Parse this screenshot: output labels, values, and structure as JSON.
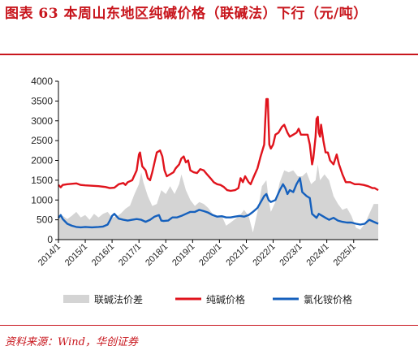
{
  "title": "图表 63   本周山东地区纯碱价格（联碱法）下行（元/吨）",
  "source": "资料来源：Wind，华创证券",
  "chart_data": {
    "type": "area+line",
    "title": "",
    "xlabel": "",
    "ylabel": "",
    "ylim": [
      0,
      4000
    ],
    "yticks": [
      0,
      500,
      1000,
      1500,
      2000,
      2500,
      3000,
      3500,
      4000
    ],
    "xrange": [
      "2014-01-01",
      "2025-12-01"
    ],
    "xticks": [
      "2014/1",
      "2015/1",
      "2016/1",
      "2017/1",
      "2018/1",
      "2019/1",
      "2020/1",
      "2021/1",
      "2022/1",
      "2023/1",
      "2024/1",
      "2025/1"
    ],
    "grid": false,
    "legend_position": "bottom",
    "series": [
      {
        "name": "联碱法价差",
        "kind": "area",
        "color": "#d4d4d4",
        "points": [
          [
            "2014-01-01",
            560
          ],
          [
            "2014-03-01",
            600
          ],
          [
            "2014-05-01",
            520
          ],
          [
            "2014-07-01",
            600
          ],
          [
            "2014-09-01",
            700
          ],
          [
            "2014-11-01",
            560
          ],
          [
            "2015-01-01",
            620
          ],
          [
            "2015-03-01",
            500
          ],
          [
            "2015-05-01",
            650
          ],
          [
            "2015-07-01",
            560
          ],
          [
            "2015-09-01",
            650
          ],
          [
            "2015-11-01",
            700
          ],
          [
            "2016-01-01",
            560
          ],
          [
            "2016-03-01",
            580
          ],
          [
            "2016-05-01",
            660
          ],
          [
            "2016-07-01",
            780
          ],
          [
            "2016-09-01",
            860
          ],
          [
            "2016-11-01",
            1150
          ],
          [
            "2017-01-01",
            1400
          ],
          [
            "2017-02-01",
            1700
          ],
          [
            "2017-03-01",
            1450
          ],
          [
            "2017-05-01",
            1100
          ],
          [
            "2017-07-01",
            850
          ],
          [
            "2017-09-01",
            900
          ],
          [
            "2017-11-01",
            1250
          ],
          [
            "2018-01-01",
            1150
          ],
          [
            "2018-03-01",
            1350
          ],
          [
            "2018-05-01",
            1150
          ],
          [
            "2018-07-01",
            1400
          ],
          [
            "2018-08-01",
            1650
          ],
          [
            "2018-10-01",
            1250
          ],
          [
            "2018-12-01",
            1000
          ],
          [
            "2019-02-01",
            850
          ],
          [
            "2019-04-01",
            950
          ],
          [
            "2019-06-01",
            900
          ],
          [
            "2019-08-01",
            800
          ],
          [
            "2019-10-01",
            650
          ],
          [
            "2019-12-01",
            600
          ],
          [
            "2020-02-01",
            600
          ],
          [
            "2020-04-01",
            350
          ],
          [
            "2020-06-01",
            430
          ],
          [
            "2020-08-01",
            520
          ],
          [
            "2020-10-01",
            600
          ],
          [
            "2020-12-01",
            750
          ],
          [
            "2021-02-01",
            600
          ],
          [
            "2021-04-01",
            180
          ],
          [
            "2021-06-01",
            700
          ],
          [
            "2021-08-01",
            1350
          ],
          [
            "2021-10-01",
            1500
          ],
          [
            "2021-11-01",
            1000
          ],
          [
            "2021-12-01",
            700
          ],
          [
            "2022-02-01",
            950
          ],
          [
            "2022-04-01",
            1450
          ],
          [
            "2022-06-01",
            1750
          ],
          [
            "2022-08-01",
            1700
          ],
          [
            "2022-10-01",
            1750
          ],
          [
            "2022-12-01",
            1600
          ],
          [
            "2023-02-01",
            1600
          ],
          [
            "2023-04-01",
            1700
          ],
          [
            "2023-06-01",
            1400
          ],
          [
            "2023-08-01",
            1500
          ],
          [
            "2023-09-01",
            1900
          ],
          [
            "2023-10-01",
            1500
          ],
          [
            "2023-12-01",
            1650
          ],
          [
            "2024-02-01",
            1500
          ],
          [
            "2024-04-01",
            1100
          ],
          [
            "2024-06-01",
            900
          ],
          [
            "2024-08-01",
            750
          ],
          [
            "2024-10-01",
            800
          ],
          [
            "2024-12-01",
            600
          ],
          [
            "2025-02-01",
            300
          ],
          [
            "2025-04-01",
            250
          ],
          [
            "2025-06-01",
            400
          ],
          [
            "2025-08-01",
            650
          ],
          [
            "2025-10-01",
            900
          ],
          [
            "2025-12-01",
            900
          ]
        ]
      },
      {
        "name": "纯碱价格",
        "kind": "line",
        "color": "#e0131c",
        "points": [
          [
            "2014-01-01",
            1380
          ],
          [
            "2014-02-01",
            1320
          ],
          [
            "2014-03-01",
            1380
          ],
          [
            "2014-05-01",
            1400
          ],
          [
            "2014-07-01",
            1410
          ],
          [
            "2014-09-01",
            1420
          ],
          [
            "2014-11-01",
            1380
          ],
          [
            "2015-01-01",
            1370
          ],
          [
            "2015-04-01",
            1360
          ],
          [
            "2015-07-01",
            1350
          ],
          [
            "2015-10-01",
            1330
          ],
          [
            "2015-12-01",
            1300
          ],
          [
            "2016-02-01",
            1310
          ],
          [
            "2016-04-01",
            1400
          ],
          [
            "2016-06-01",
            1430
          ],
          [
            "2016-07-01",
            1380
          ],
          [
            "2016-08-01",
            1450
          ],
          [
            "2016-10-01",
            1500
          ],
          [
            "2016-12-01",
            1750
          ],
          [
            "2017-01-01",
            2150
          ],
          [
            "2017-01-15",
            2200
          ],
          [
            "2017-02-15",
            1850
          ],
          [
            "2017-04-01",
            1750
          ],
          [
            "2017-05-01",
            1550
          ],
          [
            "2017-06-01",
            1500
          ],
          [
            "2017-07-01",
            1700
          ],
          [
            "2017-08-01",
            1950
          ],
          [
            "2017-09-01",
            2200
          ],
          [
            "2017-10-15",
            2250
          ],
          [
            "2017-11-15",
            2100
          ],
          [
            "2017-12-15",
            1750
          ],
          [
            "2018-01-15",
            1600
          ],
          [
            "2018-03-01",
            1650
          ],
          [
            "2018-04-15",
            1700
          ],
          [
            "2018-05-15",
            1800
          ],
          [
            "2018-07-01",
            1900
          ],
          [
            "2018-08-01",
            2050
          ],
          [
            "2018-09-01",
            2100
          ],
          [
            "2018-10-01",
            1950
          ],
          [
            "2018-11-01",
            2000
          ],
          [
            "2018-12-01",
            1750
          ],
          [
            "2019-01-15",
            1700
          ],
          [
            "2019-03-01",
            1680
          ],
          [
            "2019-04-15",
            1780
          ],
          [
            "2019-06-01",
            1750
          ],
          [
            "2019-07-15",
            1650
          ],
          [
            "2019-09-01",
            1550
          ],
          [
            "2019-10-15",
            1450
          ],
          [
            "2019-12-01",
            1400
          ],
          [
            "2020-01-15",
            1380
          ],
          [
            "2020-03-01",
            1330
          ],
          [
            "2020-04-15",
            1250
          ],
          [
            "2020-06-01",
            1230
          ],
          [
            "2020-08-01",
            1250
          ],
          [
            "2020-09-15",
            1300
          ],
          [
            "2020-10-15",
            1550
          ],
          [
            "2020-11-15",
            1450
          ],
          [
            "2020-12-15",
            1600
          ],
          [
            "2021-02-01",
            1450
          ],
          [
            "2021-03-01",
            1400
          ],
          [
            "2021-04-15",
            1600
          ],
          [
            "2021-06-01",
            1800
          ],
          [
            "2021-07-15",
            2100
          ],
          [
            "2021-09-01",
            2400
          ],
          [
            "2021-09-15",
            3000
          ],
          [
            "2021-10-01",
            3550
          ],
          [
            "2021-10-20",
            3550
          ],
          [
            "2021-11-10",
            2400
          ],
          [
            "2021-12-01",
            2300
          ],
          [
            "2022-01-01",
            2400
          ],
          [
            "2022-02-01",
            2650
          ],
          [
            "2022-03-15",
            2700
          ],
          [
            "2022-05-01",
            2850
          ],
          [
            "2022-06-01",
            2900
          ],
          [
            "2022-07-15",
            2700
          ],
          [
            "2022-08-15",
            2600
          ],
          [
            "2022-10-01",
            2650
          ],
          [
            "2022-11-15",
            2700
          ],
          [
            "2022-12-15",
            2800
          ],
          [
            "2023-01-15",
            2650
          ],
          [
            "2023-03-01",
            2650
          ],
          [
            "2023-04-15",
            2650
          ],
          [
            "2023-05-15",
            2400
          ],
          [
            "2023-06-15",
            1900
          ],
          [
            "2023-07-01",
            2050
          ],
          [
            "2023-08-01",
            2600
          ],
          [
            "2023-08-15",
            3050
          ],
          [
            "2023-09-01",
            3100
          ],
          [
            "2023-09-15",
            2700
          ],
          [
            "2023-10-01",
            2600
          ],
          [
            "2023-10-15",
            2900
          ],
          [
            "2023-11-15",
            2500
          ],
          [
            "2023-12-15",
            2200
          ],
          [
            "2024-01-15",
            2200
          ],
          [
            "2024-02-15",
            2000
          ],
          [
            "2024-04-01",
            1900
          ],
          [
            "2024-05-15",
            2150
          ],
          [
            "2024-06-15",
            1900
          ],
          [
            "2024-08-01",
            1650
          ],
          [
            "2024-09-15",
            1450
          ],
          [
            "2024-11-15",
            1450
          ],
          [
            "2025-01-15",
            1400
          ],
          [
            "2025-03-15",
            1400
          ],
          [
            "2025-05-15",
            1380
          ],
          [
            "2025-07-15",
            1350
          ],
          [
            "2025-09-15",
            1300
          ],
          [
            "2025-10-15",
            1300
          ],
          [
            "2025-12-01",
            1250
          ]
        ]
      },
      {
        "name": "氯化铵价格",
        "kind": "line",
        "color": "#1560bd",
        "points": [
          [
            "2014-01-01",
            550
          ],
          [
            "2014-02-01",
            620
          ],
          [
            "2014-03-01",
            520
          ],
          [
            "2014-05-01",
            400
          ],
          [
            "2014-07-01",
            350
          ],
          [
            "2014-09-01",
            320
          ],
          [
            "2014-11-01",
            310
          ],
          [
            "2015-01-01",
            320
          ],
          [
            "2015-04-01",
            310
          ],
          [
            "2015-07-01",
            320
          ],
          [
            "2015-09-01",
            330
          ],
          [
            "2015-11-01",
            380
          ],
          [
            "2015-12-01",
            480
          ],
          [
            "2016-01-01",
            600
          ],
          [
            "2016-02-01",
            650
          ],
          [
            "2016-04-01",
            530
          ],
          [
            "2016-06-01",
            500
          ],
          [
            "2016-08-01",
            480
          ],
          [
            "2016-10-01",
            500
          ],
          [
            "2016-12-01",
            520
          ],
          [
            "2017-02-01",
            500
          ],
          [
            "2017-04-01",
            450
          ],
          [
            "2017-06-01",
            500
          ],
          [
            "2017-08-01",
            580
          ],
          [
            "2017-10-01",
            620
          ],
          [
            "2017-11-01",
            480
          ],
          [
            "2017-12-01",
            470
          ],
          [
            "2018-02-01",
            480
          ],
          [
            "2018-04-01",
            560
          ],
          [
            "2018-06-01",
            560
          ],
          [
            "2018-08-01",
            600
          ],
          [
            "2018-10-01",
            650
          ],
          [
            "2018-12-01",
            700
          ],
          [
            "2019-02-01",
            700
          ],
          [
            "2019-04-01",
            750
          ],
          [
            "2019-06-01",
            720
          ],
          [
            "2019-08-01",
            680
          ],
          [
            "2019-10-01",
            620
          ],
          [
            "2019-12-01",
            580
          ],
          [
            "2020-02-01",
            590
          ],
          [
            "2020-04-01",
            560
          ],
          [
            "2020-06-01",
            560
          ],
          [
            "2020-08-01",
            580
          ],
          [
            "2020-10-01",
            600
          ],
          [
            "2020-12-01",
            580
          ],
          [
            "2021-02-01",
            620
          ],
          [
            "2021-04-01",
            700
          ],
          [
            "2021-06-01",
            800
          ],
          [
            "2021-08-01",
            1000
          ],
          [
            "2021-09-01",
            1100
          ],
          [
            "2021-10-01",
            1150
          ],
          [
            "2021-11-01",
            1000
          ],
          [
            "2021-12-01",
            950
          ],
          [
            "2022-02-01",
            1000
          ],
          [
            "2022-04-01",
            1250
          ],
          [
            "2022-05-15",
            1400
          ],
          [
            "2022-06-15",
            1300
          ],
          [
            "2022-07-15",
            1150
          ],
          [
            "2022-08-15",
            1250
          ],
          [
            "2022-10-01",
            1200
          ],
          [
            "2022-11-15",
            1400
          ],
          [
            "2023-01-01",
            1550
          ],
          [
            "2023-02-01",
            1200
          ],
          [
            "2023-04-01",
            1100
          ],
          [
            "2023-05-15",
            1050
          ],
          [
            "2023-06-15",
            650
          ],
          [
            "2023-08-15",
            550
          ],
          [
            "2023-09-15",
            650
          ],
          [
            "2023-11-01",
            600
          ],
          [
            "2023-12-15",
            550
          ],
          [
            "2024-02-01",
            500
          ],
          [
            "2024-04-01",
            550
          ],
          [
            "2024-06-01",
            480
          ],
          [
            "2024-08-01",
            450
          ],
          [
            "2024-10-01",
            430
          ],
          [
            "2024-12-01",
            430
          ],
          [
            "2025-02-01",
            400
          ],
          [
            "2025-04-01",
            380
          ],
          [
            "2025-06-01",
            400
          ],
          [
            "2025-08-01",
            500
          ],
          [
            "2025-10-01",
            450
          ],
          [
            "2025-12-01",
            400
          ]
        ]
      }
    ]
  }
}
